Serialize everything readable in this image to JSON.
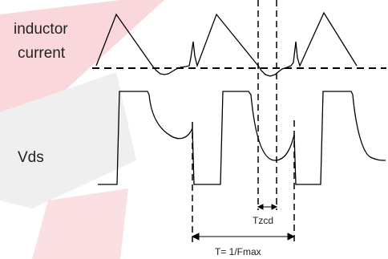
{
  "labels": {
    "inductor_current_line1": "inductor",
    "inductor_current_line2": "current",
    "vds": "Vds",
    "tzcd": "Tzcd",
    "period": "T= 1/Fmax"
  },
  "colors": {
    "trace": "#000000",
    "watermark": "#e8848c",
    "watermark_gray": "#c9c9c9",
    "text": "#222222"
  }
}
